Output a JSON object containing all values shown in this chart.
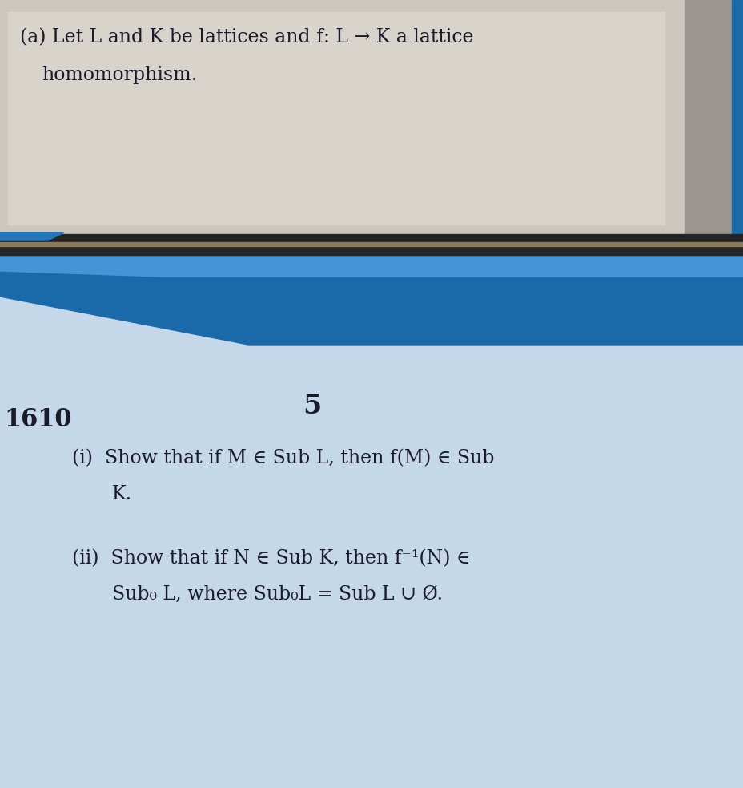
{
  "bg_top_color": "#c8c4be",
  "bg_top_light": "#d8d4ce",
  "bg_right_strip": "#a0998f",
  "bg_bottom_color": "#c8d8e8",
  "dark_bar_color": "#2a2a2a",
  "blue_trap_color": "#1a6aaa",
  "blue_bright_color": "#4090d0",
  "title_part1": "(a) Let L and K be lattices and f: L → K a lattice",
  "title_part2": "homomorphism.",
  "number_left": "1610",
  "number_center": "5",
  "line_i_part1": "(i)  Show that if M ∈ Sub L, then f(M) ∈ Sub",
  "line_i_part2": "K.",
  "line_ii_part1": "(ii)  Show that if N ∈ Sub K, then f⁻¹(N) ∈",
  "line_ii_part2": "Sub₀ L, where Sub₀L = Sub L ∪ Ø.",
  "font_size_main": 17,
  "font_size_number": 22,
  "text_color": "#1a1a2a"
}
